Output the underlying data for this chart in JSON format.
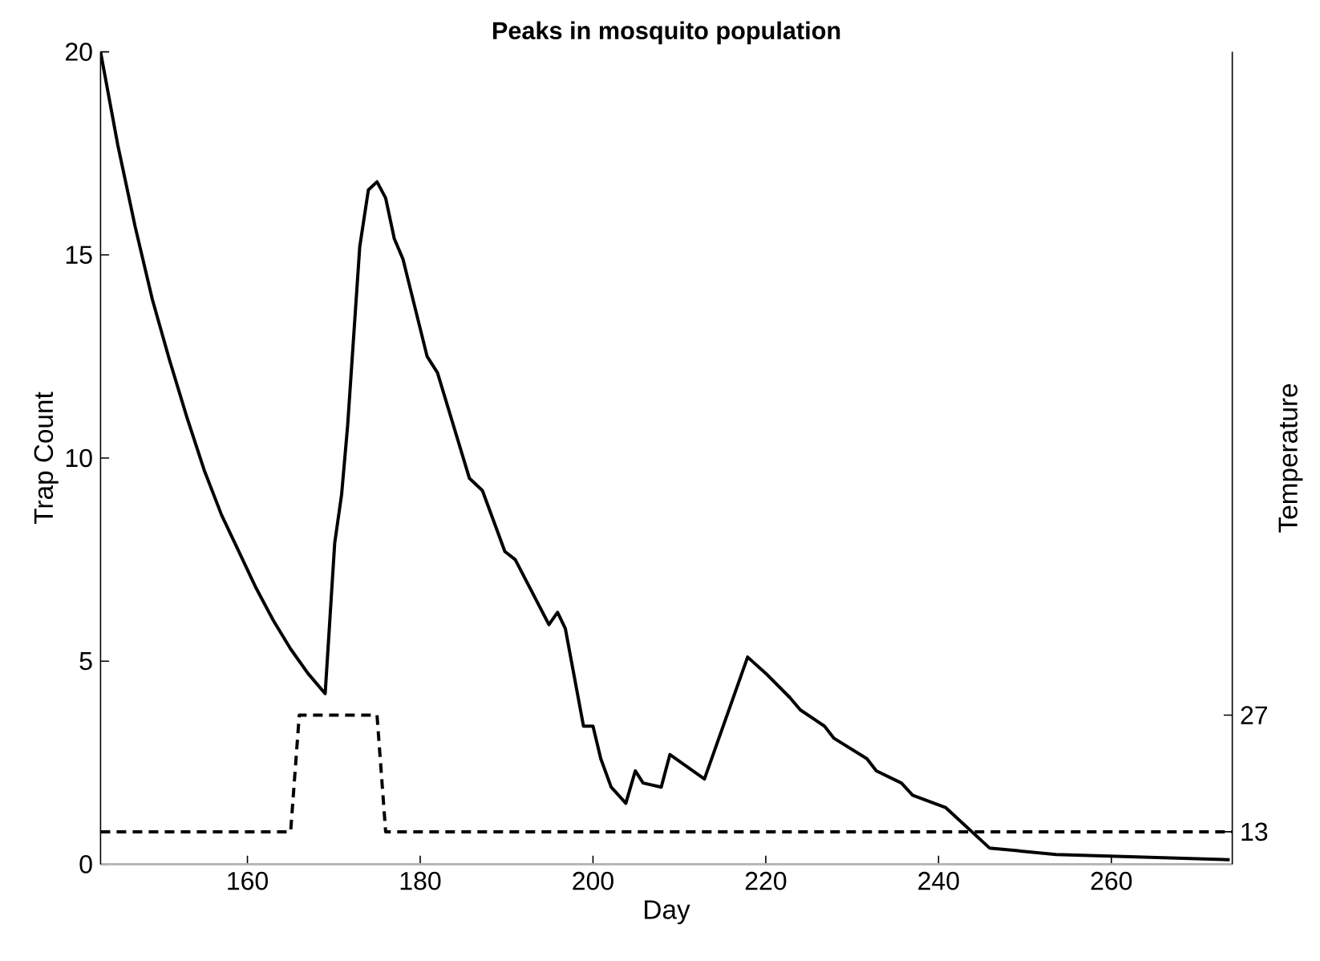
{
  "chart_data": {
    "type": "line",
    "title": "Peaks in mosquito population",
    "xlabel": "Day",
    "ylabel": "Trap Count",
    "y2label": "Temperature",
    "xlim": [
      143,
      274
    ],
    "xticks": [
      160,
      180,
      200,
      220,
      240,
      260
    ],
    "ylim": [
      0,
      20
    ],
    "yticks": [
      0,
      5,
      10,
      15,
      20
    ],
    "y2lim": [
      9.1,
      106.6
    ],
    "y2ticks": [
      13,
      27
    ],
    "grid": false,
    "marker": "none",
    "series": [
      {
        "color": "#000000",
        "line_style": "solid",
        "x": [
          143,
          145,
          147,
          149,
          151,
          153,
          155,
          157,
          159,
          161,
          163,
          165,
          167,
          169,
          170.1,
          170.9,
          171.6,
          173.0,
          174.0,
          175.0,
          176.0,
          177.0,
          178.0,
          180.8,
          182.0,
          185.7,
          187.2,
          189.8,
          191.0,
          194.9,
          195.9,
          196.8,
          198.9,
          200.0,
          200.9,
          202.1,
          203.8,
          204.9,
          205.8,
          207.9,
          208.9,
          212.9,
          217.9,
          220.0,
          222.8,
          224.0,
          226.8,
          227.9,
          231.7,
          232.8,
          235.7,
          237.0,
          240.8,
          245.9,
          253.6,
          273.7
        ],
        "values": [
          20,
          17.7,
          15.7,
          13.9,
          12.4,
          11.0,
          9.7,
          8.6,
          7.7,
          6.8,
          6.0,
          5.3,
          4.7,
          4.2,
          7.9,
          9.1,
          10.8,
          15.2,
          16.6,
          16.8,
          16.4,
          15.4,
          14.9,
          12.5,
          12.1,
          9.5,
          9.2,
          7.7,
          7.5,
          5.9,
          6.2,
          5.8,
          3.4,
          3.4,
          2.6,
          1.9,
          1.5,
          2.3,
          2.0,
          1.9,
          2.7,
          2.1,
          5.1,
          4.7,
          4.1,
          3.8,
          3.4,
          3.1,
          2.6,
          2.3,
          2.0,
          1.7,
          1.4,
          0.4,
          0.24,
          0.11
        ]
      },
      {
        "color": "#000000",
        "line_style": "dashed",
        "axis": "y2",
        "x": [
          143,
          165,
          166,
          175,
          176,
          274
        ],
        "values": [
          13,
          13,
          27,
          27,
          13,
          13
        ]
      }
    ]
  }
}
